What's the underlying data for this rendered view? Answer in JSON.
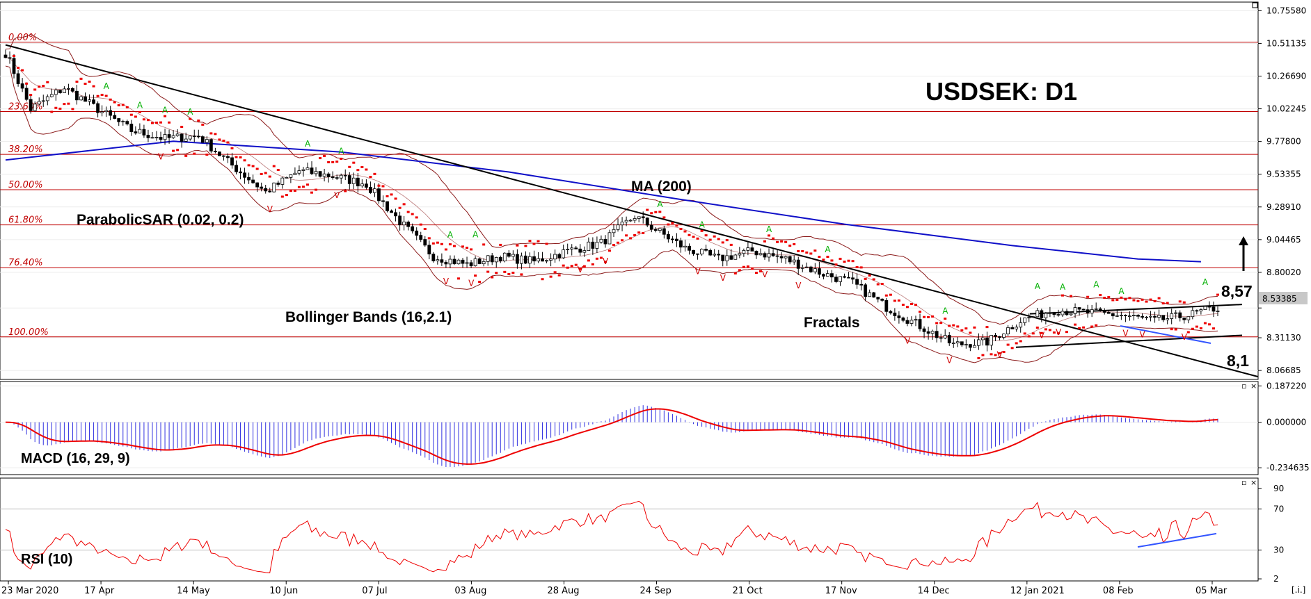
{
  "title": "USDSEK: D1",
  "colors": {
    "up_candle": "#ffffff",
    "down_candle": "#000000",
    "ma200": "#1010c8",
    "bollinger": "#8b1a1a",
    "parabolic_sar": "#ee0000",
    "fractal_up": "#00b000",
    "fractal_down": "#d00000",
    "fib_line": "#c00000",
    "macd_hist": "#3030e0",
    "macd_signal": "#ee0000",
    "rsi_line": "#ee0000",
    "trendline": "#000000",
    "support_line": "#3355ff"
  },
  "annotations": {
    "parabolic_sar": "ParabolicSAR (0.02, 0.2)",
    "ma200": "MA (200)",
    "bollinger": "Bollinger Bands (16,2.1)",
    "fractals": "Fractals",
    "level_high": "8,57",
    "level_low": "8,1",
    "macd_label": "MACD (16, 29, 9)",
    "rsi_label": "RSI (10)",
    "current_price": "8.53385",
    "arrow_direction": "up"
  },
  "chart_data": [
    {
      "type": "candlestick",
      "pane": "price",
      "ylim": [
        8.0,
        10.82
      ],
      "y_ticks": [
        "10.75580",
        "10.51135",
        "10.26690",
        "10.02245",
        "9.77800",
        "9.53355",
        "9.28910",
        "9.04465",
        "8.80020",
        "8.53385",
        "8.31130",
        "8.06685"
      ],
      "x_labels": [
        "23 Mar 2020",
        "17 Apr",
        "14 May",
        "10 Jun",
        "07 Jul",
        "03 Aug",
        "28 Aug",
        "24 Sep",
        "21 Oct",
        "17 Nov",
        "14 Dec",
        "12 Jan 2021",
        "08 Feb",
        "05 Mar"
      ],
      "fibonacci": [
        {
          "label": "0.00%",
          "value": 10.52
        },
        {
          "label": "23.60%",
          "value": 10.002
        },
        {
          "label": "38.20%",
          "value": 9.682
        },
        {
          "label": "50.00%",
          "value": 9.418
        },
        {
          "label": "61.80%",
          "value": 9.155
        },
        {
          "label": "76.40%",
          "value": 8.835
        },
        {
          "label": "100.00%",
          "value": 8.318
        }
      ],
      "close_anchors": [
        [
          0,
          10.44
        ],
        [
          6,
          10.02
        ],
        [
          14,
          10.18
        ],
        [
          22,
          10.02
        ],
        [
          30,
          9.86
        ],
        [
          38,
          9.8
        ],
        [
          46,
          9.82
        ],
        [
          54,
          9.6
        ],
        [
          62,
          9.4
        ],
        [
          70,
          9.56
        ],
        [
          78,
          9.52
        ],
        [
          86,
          9.46
        ],
        [
          94,
          9.18
        ],
        [
          102,
          8.92
        ],
        [
          110,
          8.86
        ],
        [
          118,
          8.92
        ],
        [
          126,
          8.88
        ],
        [
          134,
          8.96
        ],
        [
          142,
          9.02
        ],
        [
          150,
          9.22
        ],
        [
          156,
          9.1
        ],
        [
          162,
          8.98
        ],
        [
          170,
          8.9
        ],
        [
          178,
          8.96
        ],
        [
          186,
          8.9
        ],
        [
          194,
          8.8
        ],
        [
          202,
          8.72
        ],
        [
          210,
          8.54
        ],
        [
          218,
          8.4
        ],
        [
          226,
          8.26
        ],
        [
          234,
          8.28
        ],
        [
          242,
          8.44
        ],
        [
          250,
          8.52
        ],
        [
          258,
          8.5
        ],
        [
          266,
          8.48
        ],
        [
          274,
          8.44
        ],
        [
          282,
          8.48
        ],
        [
          288,
          8.53
        ]
      ],
      "ma200": [
        [
          0,
          9.64
        ],
        [
          40,
          9.78
        ],
        [
          80,
          9.7
        ],
        [
          120,
          9.55
        ],
        [
          160,
          9.35
        ],
        [
          200,
          9.16
        ],
        [
          240,
          9.0
        ],
        [
          270,
          8.9
        ],
        [
          285,
          8.88
        ]
      ],
      "macd_ylim": [
        -0.27,
        0.21
      ],
      "macd_ticks": [
        "0.187220",
        "0.000000",
        "-0.234635"
      ],
      "rsi_ylim": [
        0,
        100
      ],
      "rsi_ticks": [
        "90",
        "70",
        "30",
        "2"
      ]
    }
  ]
}
